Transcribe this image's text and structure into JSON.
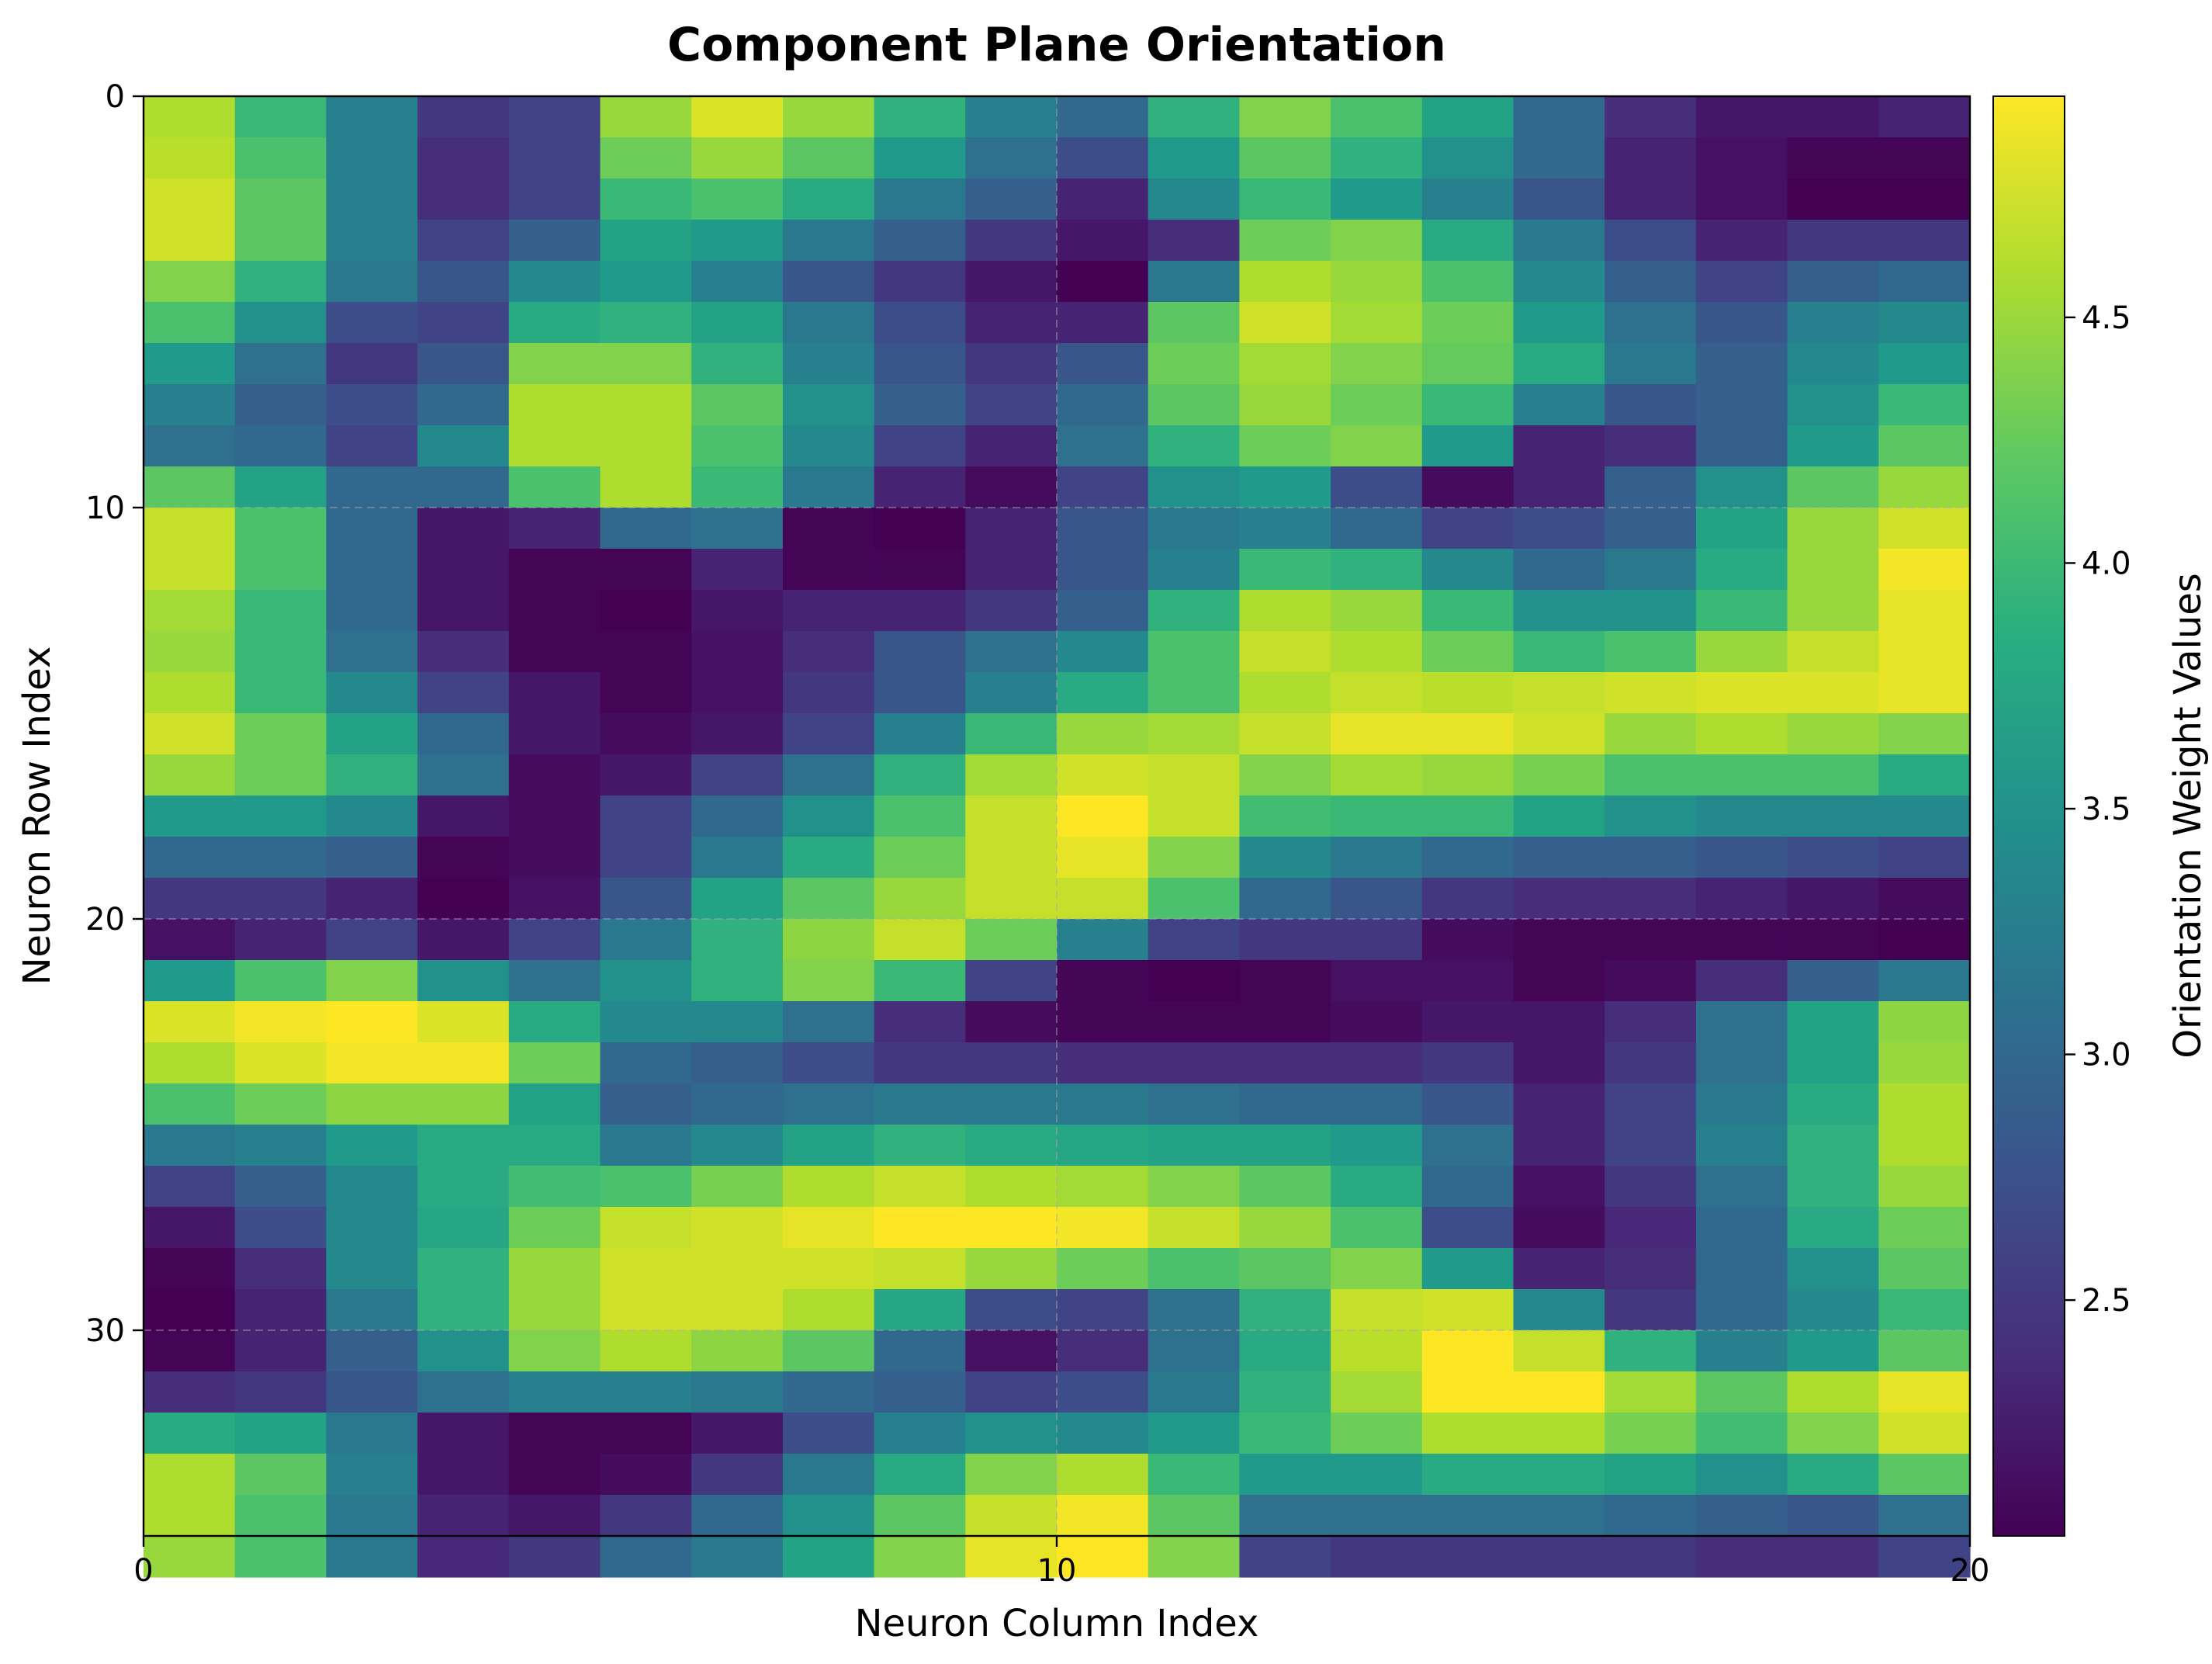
{
  "chart_data": {
    "type": "heatmap",
    "title": "Component Plane Orientation",
    "xlabel": "Neuron Column Index",
    "ylabel": "Neuron Row Index",
    "colorbar_label": "Orientation Weight Values",
    "colormap": "viridis",
    "xlim": [
      0,
      20
    ],
    "ylim": [
      0,
      35
    ],
    "y_inverted": true,
    "grid": true,
    "vmin": 2.02,
    "vmax": 4.95,
    "x_ticks": [
      {
        "value": 0,
        "label": "0"
      },
      {
        "value": 10,
        "label": "10"
      },
      {
        "value": 20,
        "label": "20"
      }
    ],
    "y_ticks": [
      {
        "value": 0,
        "label": "0"
      },
      {
        "value": 10,
        "label": "10"
      },
      {
        "value": 20,
        "label": "20"
      },
      {
        "value": 30,
        "label": "30"
      }
    ],
    "colorbar_ticks": [
      {
        "value": 2.5,
        "label": "2.5"
      },
      {
        "value": 3.0,
        "label": "3.0"
      },
      {
        "value": 3.5,
        "label": "3.5"
      },
      {
        "value": 4.0,
        "label": "4.0"
      },
      {
        "value": 4.5,
        "label": "4.5"
      }
    ],
    "values": [
      [
        4.6,
        4.0,
        3.3,
        2.5,
        2.6,
        4.5,
        4.8,
        4.5,
        3.9,
        3.3,
        3.0,
        3.9,
        4.4,
        4.1,
        3.7,
        3.0,
        2.4,
        2.2,
        2.2,
        2.3
      ],
      [
        4.65,
        4.1,
        3.3,
        2.4,
        2.6,
        4.3,
        4.5,
        4.2,
        3.6,
        3.1,
        2.7,
        3.6,
        4.2,
        3.9,
        3.5,
        3.0,
        2.3,
        2.15,
        2.05,
        2.05
      ],
      [
        4.75,
        4.2,
        3.3,
        2.4,
        2.6,
        4.0,
        4.1,
        3.8,
        3.2,
        2.9,
        2.3,
        3.4,
        4.0,
        3.6,
        3.3,
        2.8,
        2.3,
        2.15,
        2.02,
        2.02
      ],
      [
        4.75,
        4.2,
        3.3,
        2.6,
        2.9,
        3.7,
        3.6,
        3.2,
        2.9,
        2.5,
        2.2,
        2.4,
        4.3,
        4.4,
        3.8,
        3.2,
        2.7,
        2.3,
        2.5,
        2.5
      ],
      [
        4.4,
        3.9,
        3.2,
        2.8,
        3.4,
        3.6,
        3.3,
        2.8,
        2.5,
        2.2,
        2.02,
        3.2,
        4.6,
        4.5,
        4.1,
        3.4,
        2.9,
        2.6,
        2.9,
        3.0
      ],
      [
        4.1,
        3.5,
        2.7,
        2.6,
        3.8,
        3.9,
        3.7,
        3.2,
        2.7,
        2.3,
        2.3,
        4.2,
        4.75,
        4.55,
        4.3,
        3.6,
        3.1,
        2.8,
        3.3,
        3.4
      ],
      [
        3.6,
        3.1,
        2.5,
        2.8,
        4.4,
        4.4,
        3.9,
        3.3,
        2.8,
        2.5,
        2.8,
        4.3,
        4.55,
        4.4,
        4.25,
        3.8,
        3.2,
        2.9,
        3.4,
        3.6
      ],
      [
        3.3,
        2.9,
        2.7,
        3.0,
        4.6,
        4.6,
        4.2,
        3.5,
        2.9,
        2.6,
        3.0,
        4.2,
        4.5,
        4.3,
        4.0,
        3.3,
        2.8,
        2.9,
        3.5,
        4.0
      ],
      [
        3.1,
        3.0,
        2.6,
        3.4,
        4.6,
        4.6,
        4.1,
        3.4,
        2.6,
        2.3,
        3.1,
        3.9,
        4.3,
        4.4,
        3.6,
        2.3,
        2.4,
        2.9,
        3.6,
        4.2
      ],
      [
        4.2,
        3.7,
        3.0,
        3.0,
        4.1,
        4.6,
        4.0,
        3.2,
        2.3,
        2.1,
        2.6,
        3.5,
        3.6,
        2.7,
        2.1,
        2.3,
        2.9,
        3.5,
        4.2,
        4.5
      ],
      [
        4.7,
        4.1,
        3.0,
        2.2,
        2.3,
        3.0,
        3.1,
        2.05,
        2.02,
        2.3,
        2.8,
        3.2,
        3.3,
        3.0,
        2.6,
        2.7,
        2.9,
        3.7,
        4.5,
        4.75
      ],
      [
        4.7,
        4.1,
        3.0,
        2.2,
        2.05,
        2.05,
        2.3,
        2.05,
        2.05,
        2.3,
        2.8,
        3.3,
        4.0,
        3.9,
        3.4,
        3.0,
        3.2,
        3.8,
        4.5,
        4.9
      ],
      [
        4.55,
        4.0,
        3.0,
        2.2,
        2.05,
        2.02,
        2.2,
        2.3,
        2.3,
        2.5,
        2.9,
        3.9,
        4.6,
        4.5,
        4.0,
        3.5,
        3.5,
        4.0,
        4.5,
        4.85
      ],
      [
        4.5,
        4.0,
        3.1,
        2.4,
        2.05,
        2.05,
        2.15,
        2.4,
        2.8,
        3.1,
        3.4,
        4.1,
        4.7,
        4.6,
        4.3,
        4.0,
        4.1,
        4.5,
        4.7,
        4.85
      ],
      [
        4.6,
        4.0,
        3.4,
        2.6,
        2.2,
        2.05,
        2.15,
        2.5,
        2.8,
        3.3,
        3.8,
        4.1,
        4.6,
        4.7,
        4.65,
        4.7,
        4.75,
        4.8,
        4.8,
        4.85
      ],
      [
        4.75,
        4.3,
        3.7,
        3.0,
        2.2,
        2.1,
        2.2,
        2.6,
        3.3,
        4.0,
        4.5,
        4.55,
        4.7,
        4.85,
        4.85,
        4.75,
        4.5,
        4.6,
        4.5,
        4.4
      ],
      [
        4.5,
        4.3,
        3.9,
        3.1,
        2.1,
        2.2,
        2.6,
        3.1,
        3.9,
        4.55,
        4.75,
        4.7,
        4.4,
        4.55,
        4.5,
        4.35,
        4.1,
        4.1,
        4.1,
        3.8
      ],
      [
        3.6,
        3.6,
        3.4,
        2.2,
        2.1,
        2.6,
        3.0,
        3.5,
        4.1,
        4.7,
        4.95,
        4.7,
        4.05,
        4.0,
        4.0,
        3.7,
        3.5,
        3.4,
        3.4,
        3.4
      ],
      [
        3.0,
        3.0,
        2.9,
        2.05,
        2.1,
        2.6,
        3.2,
        3.8,
        4.3,
        4.7,
        4.85,
        4.4,
        3.4,
        3.2,
        3.0,
        2.9,
        2.9,
        2.8,
        2.7,
        2.6
      ],
      [
        2.5,
        2.5,
        2.3,
        2.02,
        2.15,
        2.8,
        3.7,
        4.2,
        4.5,
        4.7,
        4.7,
        4.1,
        3.0,
        2.8,
        2.5,
        2.4,
        2.4,
        2.3,
        2.2,
        2.1
      ],
      [
        2.15,
        2.3,
        2.6,
        2.2,
        2.6,
        3.2,
        3.9,
        4.45,
        4.7,
        4.3,
        3.3,
        2.6,
        2.5,
        2.5,
        2.1,
        2.05,
        2.05,
        2.05,
        2.05,
        2.02
      ],
      [
        3.6,
        4.1,
        4.4,
        3.5,
        3.1,
        3.5,
        3.9,
        4.4,
        4.0,
        2.6,
        2.05,
        2.02,
        2.05,
        2.15,
        2.15,
        2.05,
        2.1,
        2.4,
        2.9,
        3.2
      ],
      [
        4.8,
        4.9,
        4.95,
        4.8,
        3.8,
        3.4,
        3.4,
        3.1,
        2.4,
        2.1,
        2.05,
        2.05,
        2.05,
        2.1,
        2.2,
        2.2,
        2.4,
        3.1,
        3.7,
        4.45
      ],
      [
        4.6,
        4.8,
        4.9,
        4.9,
        4.3,
        3.0,
        2.9,
        2.7,
        2.5,
        2.5,
        2.4,
        2.4,
        2.4,
        2.4,
        2.5,
        2.2,
        2.5,
        3.1,
        3.7,
        4.5
      ],
      [
        4.1,
        4.3,
        4.45,
        4.45,
        3.7,
        2.9,
        3.0,
        3.1,
        3.2,
        3.2,
        3.2,
        3.1,
        3.0,
        3.0,
        2.8,
        2.3,
        2.6,
        3.2,
        3.8,
        4.6
      ],
      [
        3.2,
        3.3,
        3.6,
        3.8,
        3.8,
        3.2,
        3.4,
        3.7,
        3.9,
        3.8,
        3.75,
        3.7,
        3.7,
        3.6,
        3.1,
        2.3,
        2.6,
        3.3,
        3.9,
        4.6
      ],
      [
        2.6,
        2.9,
        3.4,
        3.8,
        4.05,
        4.1,
        4.35,
        4.6,
        4.7,
        4.6,
        4.55,
        4.4,
        4.2,
        3.8,
        3.0,
        2.15,
        2.5,
        3.1,
        3.9,
        4.5
      ],
      [
        2.2,
        2.7,
        3.4,
        3.75,
        4.3,
        4.7,
        4.75,
        4.85,
        4.95,
        4.95,
        4.9,
        4.7,
        4.5,
        4.1,
        2.7,
        2.1,
        2.35,
        3.0,
        3.8,
        4.3
      ],
      [
        2.05,
        2.4,
        3.4,
        3.9,
        4.5,
        4.75,
        4.75,
        4.75,
        4.7,
        4.5,
        4.3,
        4.1,
        4.2,
        4.4,
        3.6,
        2.3,
        2.4,
        3.0,
        3.5,
        4.2
      ],
      [
        2.02,
        2.3,
        3.2,
        3.9,
        4.5,
        4.75,
        4.75,
        4.6,
        3.75,
        2.7,
        2.6,
        3.1,
        3.9,
        4.7,
        4.75,
        3.4,
        2.5,
        3.0,
        3.4,
        4.0
      ],
      [
        2.05,
        2.3,
        2.9,
        3.5,
        4.4,
        4.6,
        4.45,
        4.2,
        3.0,
        2.15,
        2.4,
        3.1,
        3.8,
        4.65,
        4.95,
        4.7,
        3.9,
        3.3,
        3.6,
        4.2
      ],
      [
        2.4,
        2.5,
        2.8,
        3.1,
        3.3,
        3.3,
        3.2,
        3.0,
        2.9,
        2.6,
        2.7,
        3.2,
        3.9,
        4.55,
        4.95,
        4.95,
        4.55,
        4.2,
        4.6,
        4.85
      ],
      [
        3.8,
        3.7,
        3.2,
        2.2,
        2.05,
        2.05,
        2.2,
        2.7,
        3.3,
        3.5,
        3.4,
        3.6,
        4.0,
        4.3,
        4.6,
        4.6,
        4.35,
        4.05,
        4.4,
        4.75
      ],
      [
        4.6,
        4.2,
        3.3,
        2.2,
        2.05,
        2.1,
        2.5,
        3.2,
        3.8,
        4.4,
        4.6,
        4.0,
        3.6,
        3.6,
        3.8,
        3.8,
        3.7,
        3.5,
        3.8,
        4.2
      ],
      [
        4.6,
        4.1,
        3.2,
        2.3,
        2.2,
        2.5,
        3.0,
        3.5,
        4.2,
        4.7,
        4.9,
        4.2,
        3.1,
        3.1,
        3.1,
        3.1,
        3.0,
        2.9,
        2.8,
        3.1
      ],
      [
        4.5,
        4.1,
        3.2,
        2.35,
        2.5,
        3.0,
        3.2,
        3.7,
        4.4,
        4.85,
        4.95,
        4.4,
        2.6,
        2.5,
        2.5,
        2.5,
        2.5,
        2.4,
        2.4,
        2.6
      ]
    ]
  }
}
